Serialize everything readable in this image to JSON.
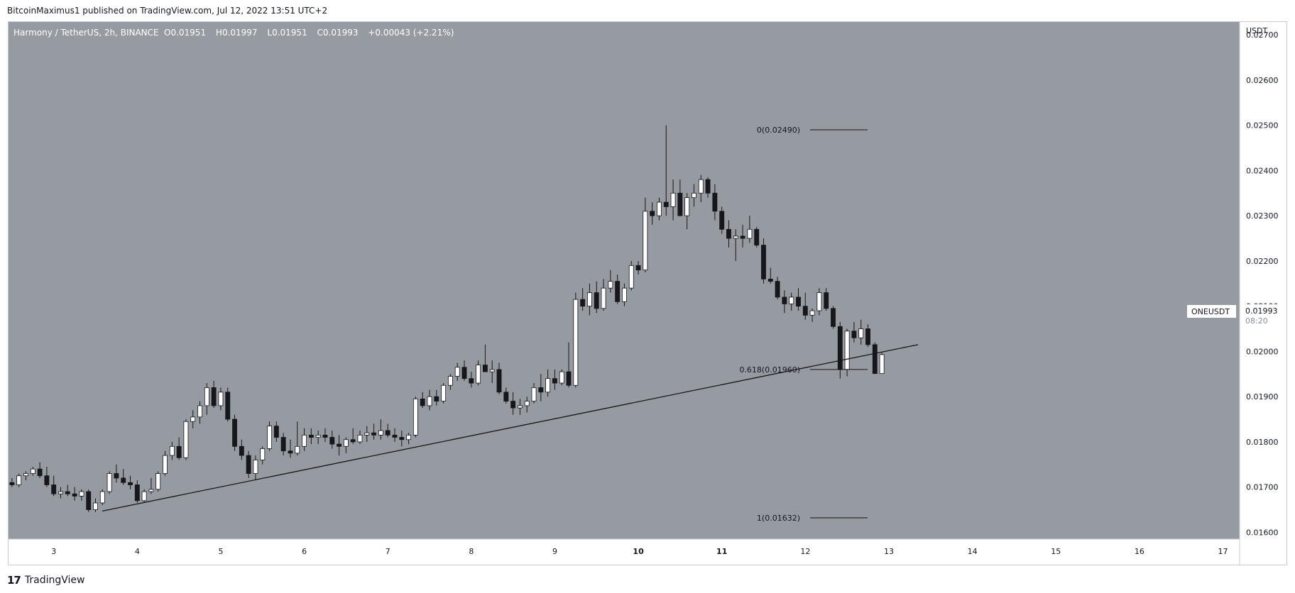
{
  "header": {
    "published": "BitcoinMaximus1 published on TradingView.com, Jul 12, 2022 13:51 UTC+2"
  },
  "footer": {
    "brand": "TradingView",
    "logo_icon": "tradingview-logo-icon"
  },
  "colors": {
    "pane_bg": "#969aa1",
    "axis_bg": "#ffffff",
    "up_candle": "#ffffff",
    "down_candle": "#16171c",
    "wick": "#16171c",
    "trendline": "#16171c",
    "fib_line": "#16171c"
  },
  "chart_data": {
    "type": "candlestick",
    "symbol": "ONEUSDT",
    "legend": {
      "name": "Harmony / TetherUS, 2h, BINANCE",
      "o_label": "O",
      "o_value": "0.01951",
      "h_label": "H",
      "h_value": "0.01997",
      "l_label": "L",
      "l_value": "0.01951",
      "c_label": "C",
      "c_value": "0.01993",
      "change": "+0.00043 (+2.21%)"
    },
    "currency_label": "USDT",
    "last_price": "0.01993",
    "countdown": "08:20",
    "ylim": [
      0.01585,
      0.0273
    ],
    "xlim": [
      2.45,
      17.2
    ],
    "y_ticks": [
      "0.01600",
      "0.01700",
      "0.01800",
      "0.01900",
      "0.02000",
      "0.02100",
      "0.02200",
      "0.02300",
      "0.02400",
      "0.02500",
      "0.02600",
      "0.02700"
    ],
    "x_ticks": [
      "3",
      "4",
      "5",
      "6",
      "7",
      "8",
      "9",
      "10",
      "11",
      "12",
      "13",
      "14",
      "15",
      "16",
      "17"
    ],
    "x_tick_values": [
      3,
      4,
      5,
      6,
      7,
      8,
      9,
      10,
      11,
      12,
      13,
      14,
      15,
      16,
      17
    ],
    "bold_x_ticks": [
      "10",
      "11"
    ],
    "start_x": 2.5,
    "bar_interval": 0.08333,
    "candles": [
      [
        0.0171,
        0.0172,
        0.017,
        0.01705
      ],
      [
        0.01705,
        0.0173,
        0.017,
        0.01725
      ],
      [
        0.01725,
        0.01735,
        0.01715,
        0.0173
      ],
      [
        0.0173,
        0.01745,
        0.01725,
        0.0174
      ],
      [
        0.0174,
        0.01755,
        0.0172,
        0.01725
      ],
      [
        0.01725,
        0.01745,
        0.017,
        0.01705
      ],
      [
        0.01705,
        0.01725,
        0.0168,
        0.01685
      ],
      [
        0.01685,
        0.017,
        0.01675,
        0.0169
      ],
      [
        0.0169,
        0.01705,
        0.0168,
        0.01685
      ],
      [
        0.01685,
        0.017,
        0.0167,
        0.0168
      ],
      [
        0.0168,
        0.01695,
        0.0167,
        0.0169
      ],
      [
        0.0169,
        0.01695,
        0.01645,
        0.0165
      ],
      [
        0.0165,
        0.01675,
        0.01645,
        0.01665
      ],
      [
        0.01665,
        0.01695,
        0.0166,
        0.0169
      ],
      [
        0.0169,
        0.01735,
        0.01685,
        0.0173
      ],
      [
        0.0173,
        0.0175,
        0.0171,
        0.0172
      ],
      [
        0.0172,
        0.0174,
        0.01705,
        0.0171
      ],
      [
        0.0171,
        0.01725,
        0.01695,
        0.01705
      ],
      [
        0.01705,
        0.01715,
        0.01665,
        0.0167
      ],
      [
        0.0167,
        0.01695,
        0.01665,
        0.0169
      ],
      [
        0.0169,
        0.0172,
        0.01685,
        0.01695
      ],
      [
        0.01695,
        0.01735,
        0.0169,
        0.0173
      ],
      [
        0.0173,
        0.0178,
        0.01725,
        0.0177
      ],
      [
        0.0177,
        0.018,
        0.0176,
        0.0179
      ],
      [
        0.0179,
        0.0181,
        0.0176,
        0.01765
      ],
      [
        0.01765,
        0.0185,
        0.0176,
        0.01845
      ],
      [
        0.01845,
        0.0187,
        0.0183,
        0.01855
      ],
      [
        0.01855,
        0.0189,
        0.0184,
        0.0188
      ],
      [
        0.0188,
        0.0193,
        0.0186,
        0.0192
      ],
      [
        0.0192,
        0.01935,
        0.01875,
        0.0188
      ],
      [
        0.0188,
        0.0192,
        0.0187,
        0.0191
      ],
      [
        0.0191,
        0.0192,
        0.01845,
        0.0185
      ],
      [
        0.0185,
        0.0186,
        0.0178,
        0.0179
      ],
      [
        0.0179,
        0.01805,
        0.0176,
        0.0177
      ],
      [
        0.0177,
        0.0178,
        0.0172,
        0.0173
      ],
      [
        0.0173,
        0.0177,
        0.01715,
        0.0176
      ],
      [
        0.0176,
        0.0179,
        0.0175,
        0.01785
      ],
      [
        0.01785,
        0.01845,
        0.0178,
        0.01835
      ],
      [
        0.01835,
        0.01845,
        0.018,
        0.0181
      ],
      [
        0.0181,
        0.0182,
        0.0177,
        0.0178
      ],
      [
        0.0178,
        0.01805,
        0.01765,
        0.01775
      ],
      [
        0.01775,
        0.01845,
        0.0177,
        0.0179
      ],
      [
        0.0179,
        0.0183,
        0.0178,
        0.01815
      ],
      [
        0.01815,
        0.0183,
        0.01795,
        0.0181
      ],
      [
        0.0181,
        0.01825,
        0.01795,
        0.01815
      ],
      [
        0.01815,
        0.0183,
        0.018,
        0.0181
      ],
      [
        0.0181,
        0.01825,
        0.01785,
        0.01795
      ],
      [
        0.01795,
        0.01815,
        0.0177,
        0.0179
      ],
      [
        0.0179,
        0.0181,
        0.01775,
        0.01805
      ],
      [
        0.01805,
        0.0183,
        0.01795,
        0.018
      ],
      [
        0.018,
        0.01825,
        0.01795,
        0.01815
      ],
      [
        0.01815,
        0.01835,
        0.018,
        0.0182
      ],
      [
        0.0182,
        0.0184,
        0.01805,
        0.01815
      ],
      [
        0.01815,
        0.0185,
        0.01805,
        0.01825
      ],
      [
        0.01825,
        0.0184,
        0.0181,
        0.01815
      ],
      [
        0.01815,
        0.0183,
        0.018,
        0.0181
      ],
      [
        0.0181,
        0.01825,
        0.0179,
        0.01805
      ],
      [
        0.01805,
        0.0182,
        0.01795,
        0.01815
      ],
      [
        0.01815,
        0.019,
        0.0181,
        0.01895
      ],
      [
        0.01895,
        0.0191,
        0.01875,
        0.0188
      ],
      [
        0.0188,
        0.01915,
        0.0187,
        0.019
      ],
      [
        0.019,
        0.01915,
        0.0188,
        0.0189
      ],
      [
        0.0189,
        0.0193,
        0.01885,
        0.01925
      ],
      [
        0.01925,
        0.0195,
        0.01915,
        0.01945
      ],
      [
        0.01945,
        0.01975,
        0.01935,
        0.01965
      ],
      [
        0.01965,
        0.0198,
        0.01935,
        0.0194
      ],
      [
        0.0194,
        0.01955,
        0.0192,
        0.0193
      ],
      [
        0.0193,
        0.0198,
        0.01925,
        0.0197
      ],
      [
        0.0197,
        0.02015,
        0.01955,
        0.01955
      ],
      [
        0.01955,
        0.0198,
        0.0193,
        0.0196
      ],
      [
        0.0196,
        0.01975,
        0.01905,
        0.0191
      ],
      [
        0.0191,
        0.0192,
        0.01885,
        0.0189
      ],
      [
        0.0189,
        0.0191,
        0.0186,
        0.01875
      ],
      [
        0.01875,
        0.01895,
        0.0186,
        0.0188
      ],
      [
        0.0188,
        0.019,
        0.01865,
        0.0189
      ],
      [
        0.0189,
        0.0193,
        0.01885,
        0.0192
      ],
      [
        0.0192,
        0.0195,
        0.0189,
        0.0191
      ],
      [
        0.0191,
        0.0196,
        0.019,
        0.0194
      ],
      [
        0.0194,
        0.0196,
        0.01915,
        0.0193
      ],
      [
        0.0193,
        0.0196,
        0.01925,
        0.01955
      ],
      [
        0.01955,
        0.0202,
        0.0192,
        0.01925
      ],
      [
        0.01925,
        0.0213,
        0.0192,
        0.02115
      ],
      [
        0.02115,
        0.0214,
        0.0209,
        0.021
      ],
      [
        0.021,
        0.0215,
        0.0208,
        0.0213
      ],
      [
        0.0213,
        0.02155,
        0.02085,
        0.02095
      ],
      [
        0.02095,
        0.0216,
        0.0209,
        0.0214
      ],
      [
        0.0214,
        0.0218,
        0.0213,
        0.02155
      ],
      [
        0.02155,
        0.0217,
        0.02105,
        0.0211
      ],
      [
        0.0211,
        0.0215,
        0.021,
        0.0214
      ],
      [
        0.0214,
        0.022,
        0.02135,
        0.0219
      ],
      [
        0.0219,
        0.022,
        0.0217,
        0.0218
      ],
      [
        0.0218,
        0.0234,
        0.02175,
        0.0231
      ],
      [
        0.0231,
        0.0233,
        0.0228,
        0.023
      ],
      [
        0.023,
        0.0234,
        0.0229,
        0.0233
      ],
      [
        0.0233,
        0.025,
        0.023,
        0.0232
      ],
      [
        0.0232,
        0.0238,
        0.0229,
        0.0235
      ],
      [
        0.0235,
        0.0238,
        0.0231,
        0.023
      ],
      [
        0.023,
        0.0235,
        0.0227,
        0.0234
      ],
      [
        0.0234,
        0.0237,
        0.0232,
        0.0235
      ],
      [
        0.0235,
        0.0239,
        0.0233,
        0.0238
      ],
      [
        0.0238,
        0.02385,
        0.0234,
        0.0235
      ],
      [
        0.0235,
        0.0237,
        0.0229,
        0.0231
      ],
      [
        0.0231,
        0.0232,
        0.0226,
        0.0227
      ],
      [
        0.0227,
        0.0229,
        0.0223,
        0.0225
      ],
      [
        0.0225,
        0.0227,
        0.022,
        0.02255
      ],
      [
        0.02255,
        0.0228,
        0.0223,
        0.0225
      ],
      [
        0.0225,
        0.023,
        0.0224,
        0.0227
      ],
      [
        0.0227,
        0.02275,
        0.0223,
        0.02235
      ],
      [
        0.02235,
        0.0225,
        0.0215,
        0.0216
      ],
      [
        0.0216,
        0.02185,
        0.0215,
        0.02155
      ],
      [
        0.02155,
        0.02165,
        0.02115,
        0.0212
      ],
      [
        0.0212,
        0.02135,
        0.02085,
        0.02105
      ],
      [
        0.02105,
        0.0213,
        0.0209,
        0.0212
      ],
      [
        0.0212,
        0.0214,
        0.0209,
        0.021
      ],
      [
        0.021,
        0.0213,
        0.0207,
        0.0208
      ],
      [
        0.0208,
        0.02095,
        0.02065,
        0.0209
      ],
      [
        0.0209,
        0.0214,
        0.0208,
        0.0213
      ],
      [
        0.0213,
        0.0214,
        0.0209,
        0.02095
      ],
      [
        0.02095,
        0.021,
        0.0205,
        0.02055
      ],
      [
        0.02055,
        0.02065,
        0.0194,
        0.0196
      ],
      [
        0.0196,
        0.0205,
        0.01945,
        0.02045
      ],
      [
        0.02045,
        0.02065,
        0.0202,
        0.0203
      ],
      [
        0.0203,
        0.0207,
        0.02015,
        0.0205
      ],
      [
        0.0205,
        0.0206,
        0.0201,
        0.02015
      ],
      [
        0.02015,
        0.0202,
        0.01951,
        0.01951
      ],
      [
        0.01951,
        0.01997,
        0.01951,
        0.01993
      ]
    ],
    "trendline": {
      "x1": 3.58,
      "y1": 0.01647,
      "x2": 13.35,
      "y2": 0.02015
    },
    "fib_levels": [
      {
        "label": "0(0.02490)",
        "value": 0.0249
      },
      {
        "label": "0.618(0.01960)",
        "value": 0.0196
      },
      {
        "label": "1(0.01632)",
        "value": 0.01632
      }
    ]
  }
}
